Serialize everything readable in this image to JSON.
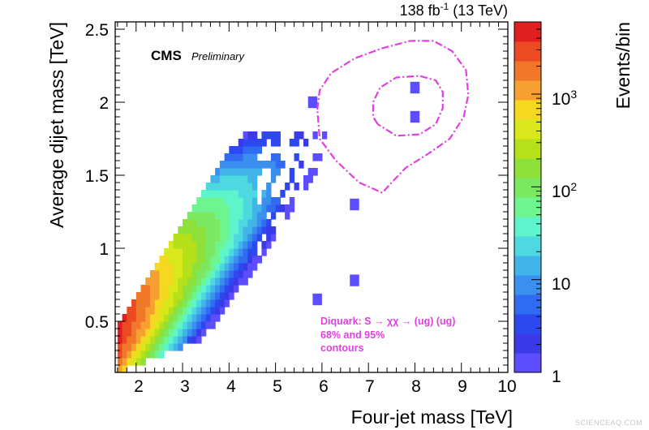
{
  "chart_data": {
    "type": "heatmap",
    "xlabel": "Four-jet mass [TeV]",
    "ylabel": "Average dijet mass [TeV]",
    "zlabel": "Events/bin",
    "xlim": [
      1.55,
      10
    ],
    "ylim": [
      0.15,
      2.55
    ],
    "z_scale": "log",
    "zlim": [
      1,
      6000
    ],
    "x_ticks": [
      "2",
      "3",
      "4",
      "5",
      "6",
      "7",
      "8",
      "9",
      "10"
    ],
    "y_ticks": [
      "0.5",
      "1",
      "1.5",
      "2",
      "2.5"
    ],
    "z_ticks": [
      "1",
      "10",
      "10^2",
      "10^3"
    ],
    "luminosity_label": "138 fb-1 (13 TeV)",
    "experiment": "CMS",
    "status": "Preliminary",
    "legend": {
      "line1": "Diquark: S → χχ → (ug) (ug)",
      "line2": "68% and 95%",
      "line3": "contours",
      "color": "#e040e0"
    },
    "contours": [
      {
        "level": "68%",
        "points": [
          [
            7.2,
            1.85
          ],
          [
            7.1,
            1.9
          ],
          [
            7.1,
            2.0
          ],
          [
            7.25,
            2.1
          ],
          [
            7.6,
            2.17
          ],
          [
            8.1,
            2.18
          ],
          [
            8.45,
            2.15
          ],
          [
            8.6,
            2.07
          ],
          [
            8.6,
            1.96
          ],
          [
            8.45,
            1.85
          ],
          [
            8.1,
            1.78
          ],
          [
            7.6,
            1.77
          ],
          [
            7.2,
            1.85
          ]
        ]
      },
      {
        "level": "95%",
        "points": [
          [
            5.9,
            1.95
          ],
          [
            5.95,
            2.08
          ],
          [
            6.2,
            2.2
          ],
          [
            6.7,
            2.3
          ],
          [
            7.3,
            2.37
          ],
          [
            7.9,
            2.42
          ],
          [
            8.4,
            2.42
          ],
          [
            8.8,
            2.35
          ],
          [
            9.1,
            2.22
          ],
          [
            9.15,
            2.05
          ],
          [
            9.05,
            1.9
          ],
          [
            8.75,
            1.75
          ],
          [
            8.3,
            1.65
          ],
          [
            7.8,
            1.55
          ],
          [
            7.5,
            1.45
          ],
          [
            7.3,
            1.38
          ],
          [
            6.8,
            1.45
          ],
          [
            6.3,
            1.6
          ],
          [
            5.95,
            1.75
          ],
          [
            5.9,
            1.95
          ]
        ]
      }
    ],
    "colors": {
      "palette": [
        "#5c4dff",
        "#3a3ae8",
        "#2e48f0",
        "#2f6cf2",
        "#3b8fee",
        "#41b4ea",
        "#4ed8e0",
        "#5ff5cc",
        "#6ff58f",
        "#7ae860",
        "#8fe03a",
        "#b5e01a",
        "#d8e81a",
        "#f5d820",
        "#f5a030",
        "#f07828",
        "#ec4a22",
        "#e02020"
      ],
      "signal": "#e040e0"
    }
  },
  "watermark": "SCIENCEAQ.COM"
}
